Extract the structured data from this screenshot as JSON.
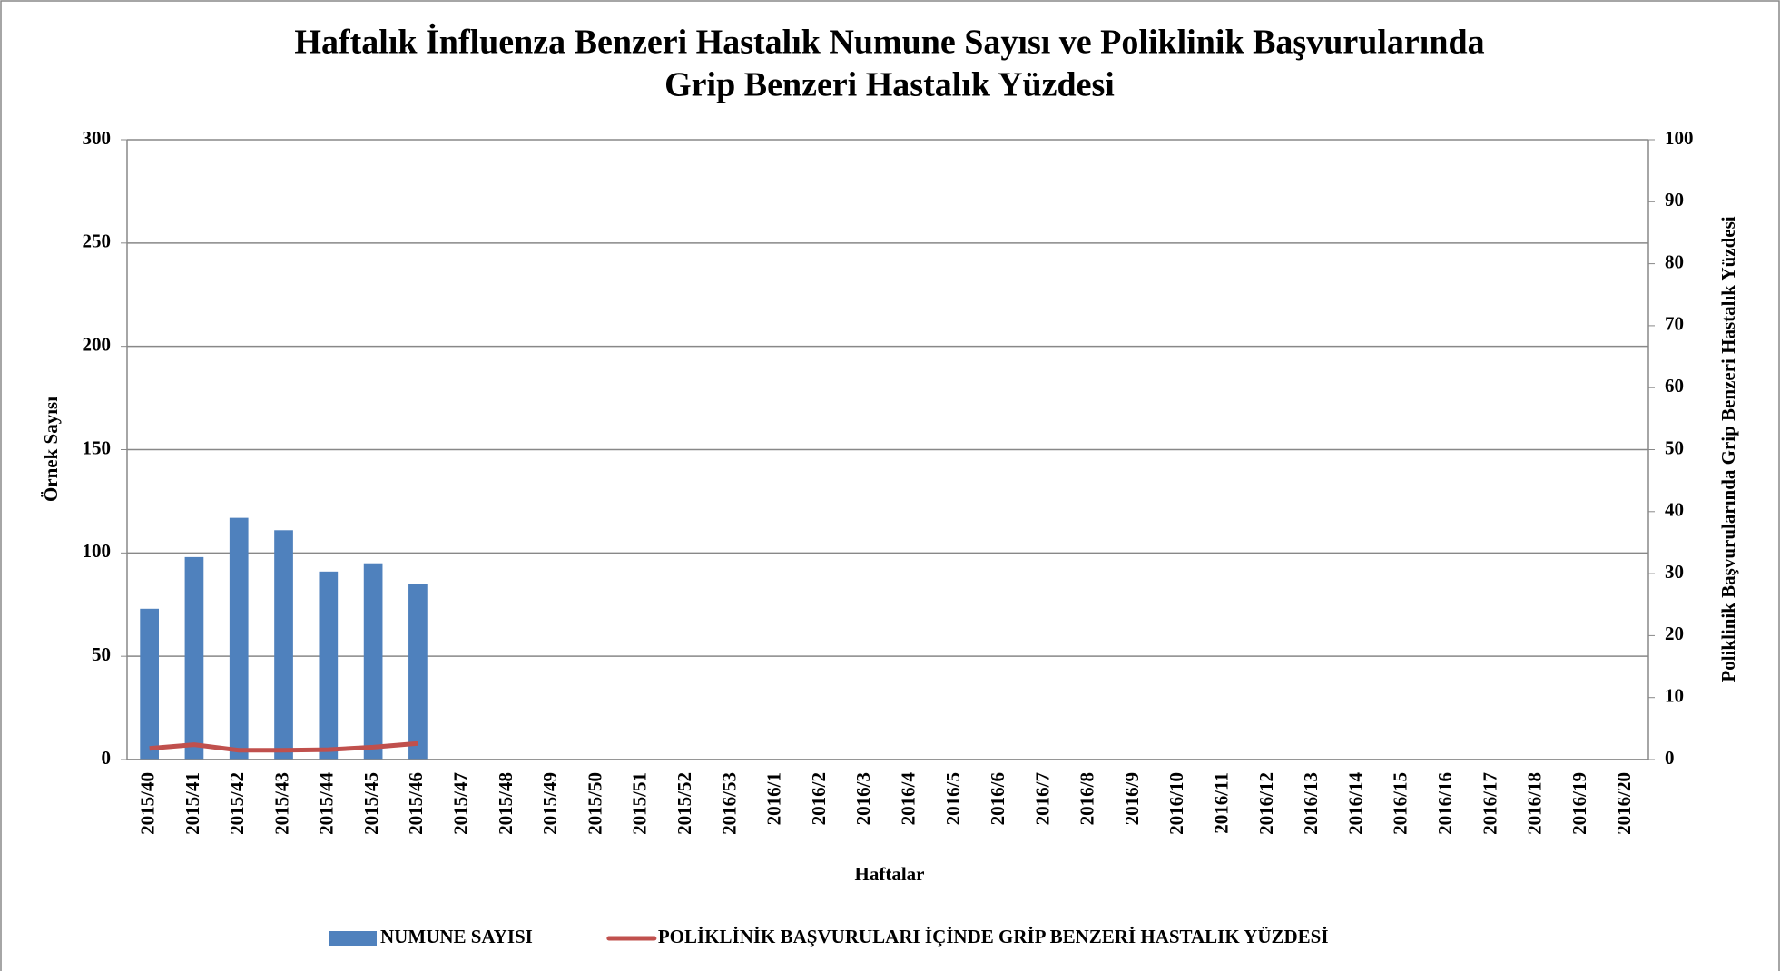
{
  "chart_data": {
    "type": "bar",
    "title": [
      "Haftalık İnfluenza Benzeri Hastalık Numune Sayısı ve Poliklinik Başvurularında",
      "Grip Benzeri Hastalık Yüzdesi"
    ],
    "x_label": "Haftalar",
    "y_label": "Örnek Sayısı",
    "y2_label": "Poliklinik Başvurularında Grip Benzeri Hastalık Yüzdesi",
    "categories": [
      "2015/40",
      "2015/41",
      "2015/42",
      "2015/43",
      "2015/44",
      "2015/45",
      "2015/46",
      "2015/47",
      "2015/48",
      "2015/49",
      "2015/50",
      "2015/51",
      "2015/52",
      "2016/53",
      "2016/1",
      "2016/2",
      "2016/3",
      "2016/4",
      "2016/5",
      "2016/6",
      "2016/7",
      "2016/8",
      "2016/9",
      "2016/10",
      "2016/11",
      "2016/12",
      "2016/13",
      "2016/14",
      "2016/15",
      "2016/16",
      "2016/17",
      "2016/18",
      "2016/19",
      "2016/20"
    ],
    "series": [
      {
        "name": "NUMUNE SAYISI",
        "type": "bar",
        "color": "#4f81bd",
        "values": [
          73,
          98,
          117,
          111,
          91,
          95,
          85,
          null,
          null,
          null,
          null,
          null,
          null,
          null,
          null,
          null,
          null,
          null,
          null,
          null,
          null,
          null,
          null,
          null,
          null,
          null,
          null,
          null,
          null,
          null,
          null,
          null,
          null,
          null
        ]
      },
      {
        "name": "POLİKLİNİK BAŞVURULARI İÇİNDE GRİP BENZERİ HASTALIK YÜZDESİ",
        "type": "line",
        "axis": "y2",
        "color": "#c0504d",
        "values": [
          1.8,
          2.4,
          1.5,
          1.5,
          1.6,
          2.0,
          2.6,
          null,
          null,
          null,
          null,
          null,
          null,
          null,
          null,
          null,
          null,
          null,
          null,
          null,
          null,
          null,
          null,
          null,
          null,
          null,
          null,
          null,
          null,
          null,
          null,
          null,
          null,
          null
        ]
      }
    ],
    "ylim": [
      0,
      300
    ],
    "yticks": [
      0,
      50,
      100,
      150,
      200,
      250,
      300
    ],
    "y2lim": [
      0,
      100
    ],
    "y2ticks": [
      0,
      10,
      20,
      30,
      40,
      50,
      60,
      70,
      80,
      90,
      100
    ],
    "grid": true,
    "legend": "bottom"
  }
}
